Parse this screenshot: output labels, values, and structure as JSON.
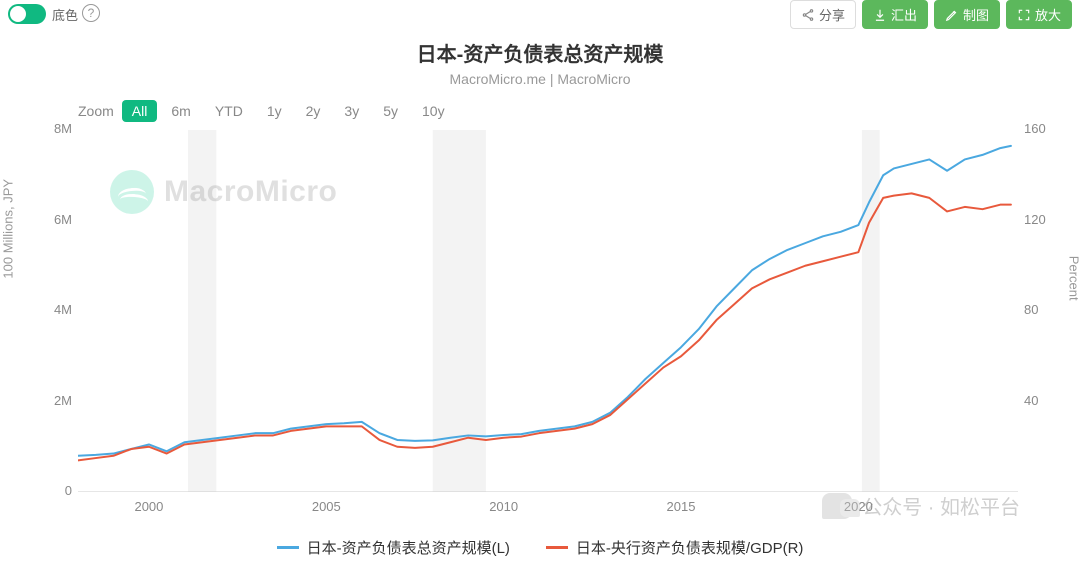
{
  "toggle": {
    "label": "底色"
  },
  "buttons": {
    "share": "分享",
    "export": "汇出",
    "draw": "制图",
    "zoom": "放大"
  },
  "title": {
    "main": "日本-资产负债表总资产规模",
    "sub": "MacroMicro.me | MacroMicro"
  },
  "zoom": {
    "label": "Zoom",
    "options": [
      "All",
      "6m",
      "YTD",
      "1y",
      "2y",
      "3y",
      "5y",
      "10y"
    ],
    "active_index": 0
  },
  "chart": {
    "type": "line",
    "x_range": [
      1998,
      2024.5
    ],
    "x_ticks": [
      2000,
      2005,
      2010,
      2015,
      2020
    ],
    "left": {
      "title": "100 Millions, JPY",
      "range": [
        0,
        8000000
      ],
      "ticks": [
        0,
        2000000,
        4000000,
        6000000,
        8000000
      ],
      "tick_labels": [
        "0",
        "2M",
        "4M",
        "6M",
        "8M"
      ]
    },
    "right": {
      "title": "Percent",
      "range": [
        0,
        160
      ],
      "ticks": [
        40,
        80,
        120,
        160
      ],
      "tick_labels": [
        "40",
        "80",
        "120",
        "160"
      ]
    },
    "grey_bands": [
      {
        "from": 2001.1,
        "to": 2001.9
      },
      {
        "from": 2008.0,
        "to": 2009.5
      },
      {
        "from": 2020.1,
        "to": 2020.6
      }
    ],
    "colors": {
      "background": "#ffffff",
      "grid_band": "#eeeeee",
      "axis_text": "#888888"
    },
    "series": [
      {
        "name": "日本-资产负债表总资产规模(L)",
        "axis": "left",
        "color": "#4aa8e0",
        "line_width": 2,
        "points": [
          [
            1998.0,
            800000
          ],
          [
            1998.5,
            820000
          ],
          [
            1999.0,
            850000
          ],
          [
            1999.5,
            950000
          ],
          [
            2000.0,
            1050000
          ],
          [
            2000.5,
            900000
          ],
          [
            2001.0,
            1100000
          ],
          [
            2001.5,
            1150000
          ],
          [
            2002.0,
            1200000
          ],
          [
            2002.5,
            1250000
          ],
          [
            2003.0,
            1300000
          ],
          [
            2003.5,
            1300000
          ],
          [
            2004.0,
            1400000
          ],
          [
            2004.5,
            1450000
          ],
          [
            2005.0,
            1500000
          ],
          [
            2005.5,
            1520000
          ],
          [
            2006.0,
            1550000
          ],
          [
            2006.5,
            1300000
          ],
          [
            2007.0,
            1150000
          ],
          [
            2007.5,
            1130000
          ],
          [
            2008.0,
            1140000
          ],
          [
            2008.5,
            1200000
          ],
          [
            2009.0,
            1250000
          ],
          [
            2009.5,
            1230000
          ],
          [
            2010.0,
            1260000
          ],
          [
            2010.5,
            1280000
          ],
          [
            2011.0,
            1350000
          ],
          [
            2011.5,
            1400000
          ],
          [
            2012.0,
            1450000
          ],
          [
            2012.5,
            1550000
          ],
          [
            2013.0,
            1750000
          ],
          [
            2013.5,
            2100000
          ],
          [
            2014.0,
            2500000
          ],
          [
            2014.5,
            2850000
          ],
          [
            2015.0,
            3200000
          ],
          [
            2015.5,
            3600000
          ],
          [
            2016.0,
            4100000
          ],
          [
            2016.5,
            4500000
          ],
          [
            2017.0,
            4900000
          ],
          [
            2017.5,
            5150000
          ],
          [
            2018.0,
            5350000
          ],
          [
            2018.5,
            5500000
          ],
          [
            2019.0,
            5650000
          ],
          [
            2019.5,
            5750000
          ],
          [
            2020.0,
            5900000
          ],
          [
            2020.3,
            6400000
          ],
          [
            2020.7,
            7000000
          ],
          [
            2021.0,
            7150000
          ],
          [
            2021.5,
            7250000
          ],
          [
            2022.0,
            7350000
          ],
          [
            2022.5,
            7100000
          ],
          [
            2023.0,
            7350000
          ],
          [
            2023.5,
            7450000
          ],
          [
            2024.0,
            7600000
          ],
          [
            2024.3,
            7650000
          ]
        ]
      },
      {
        "name": "日本-央行资产负债表规模/GDP(R)",
        "axis": "right",
        "color": "#e8593c",
        "line_width": 2,
        "points": [
          [
            1998.0,
            14
          ],
          [
            1998.5,
            15
          ],
          [
            1999.0,
            16
          ],
          [
            1999.5,
            19
          ],
          [
            2000.0,
            20
          ],
          [
            2000.5,
            17
          ],
          [
            2001.0,
            21
          ],
          [
            2001.5,
            22
          ],
          [
            2002.0,
            23
          ],
          [
            2002.5,
            24
          ],
          [
            2003.0,
            25
          ],
          [
            2003.5,
            25
          ],
          [
            2004.0,
            27
          ],
          [
            2004.5,
            28
          ],
          [
            2005.0,
            29
          ],
          [
            2005.5,
            29
          ],
          [
            2006.0,
            29
          ],
          [
            2006.5,
            23
          ],
          [
            2007.0,
            20
          ],
          [
            2007.5,
            19.5
          ],
          [
            2008.0,
            20
          ],
          [
            2008.5,
            22
          ],
          [
            2009.0,
            24
          ],
          [
            2009.5,
            23
          ],
          [
            2010.0,
            24
          ],
          [
            2010.5,
            24.5
          ],
          [
            2011.0,
            26
          ],
          [
            2011.5,
            27
          ],
          [
            2012.0,
            28
          ],
          [
            2012.5,
            30
          ],
          [
            2013.0,
            34
          ],
          [
            2013.5,
            41
          ],
          [
            2014.0,
            48
          ],
          [
            2014.5,
            55
          ],
          [
            2015.0,
            60
          ],
          [
            2015.5,
            67
          ],
          [
            2016.0,
            76
          ],
          [
            2016.5,
            83
          ],
          [
            2017.0,
            90
          ],
          [
            2017.5,
            94
          ],
          [
            2018.0,
            97
          ],
          [
            2018.5,
            100
          ],
          [
            2019.0,
            102
          ],
          [
            2019.5,
            104
          ],
          [
            2020.0,
            106
          ],
          [
            2020.3,
            119
          ],
          [
            2020.7,
            130
          ],
          [
            2021.0,
            131
          ],
          [
            2021.5,
            132
          ],
          [
            2022.0,
            130
          ],
          [
            2022.5,
            124
          ],
          [
            2023.0,
            126
          ],
          [
            2023.5,
            125
          ],
          [
            2024.0,
            127
          ],
          [
            2024.3,
            127
          ]
        ]
      }
    ]
  },
  "legend": [
    {
      "label": "日本-资产负债表总资产规模(L)",
      "color": "#4aa8e0"
    },
    {
      "label": "日本-央行资产负债表规模/GDP(R)",
      "color": "#e8593c"
    }
  ],
  "watermarks": {
    "macromicro": "MacroMicro",
    "wechat": "公众号 · 如松平台"
  }
}
